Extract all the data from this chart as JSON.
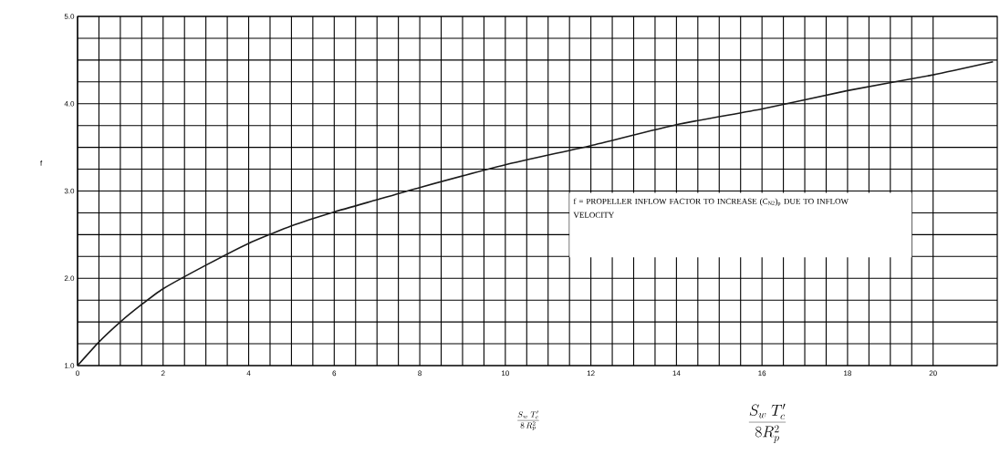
{
  "chart_data": {
    "type": "line",
    "x": [
      0,
      0.5,
      1,
      1.5,
      2,
      3,
      4,
      5,
      6,
      7,
      8,
      10,
      12,
      14,
      16,
      18,
      20,
      21.4
    ],
    "series": [
      {
        "color": "#1a1a1a",
        "values": [
          1.0,
          1.27,
          1.5,
          1.7,
          1.88,
          2.15,
          2.4,
          2.6,
          2.76,
          2.9,
          3.04,
          3.3,
          3.52,
          3.76,
          3.94,
          4.15,
          4.33,
          4.48
        ]
      }
    ],
    "xlim": [
      0,
      21.5
    ],
    "ylim": [
      1,
      5
    ],
    "xticks": [
      0,
      2,
      4,
      6,
      8,
      10,
      12,
      14,
      16,
      18,
      20
    ],
    "yticks": [
      {
        "value": 1,
        "label": "1.0"
      },
      {
        "value": 2,
        "label": "2.0"
      },
      {
        "value": 3,
        "label": "3.0"
      },
      {
        "value": 4,
        "label": "4.0"
      },
      {
        "value": 5,
        "label": "5.0"
      }
    ],
    "grid": true,
    "ylabel": "f",
    "xlabel": "\\frac{S_w\\;T'_c}{8\\,R_p^2}",
    "annotations": [
      "f = PROPELLER INFLOW FACTOR TO INCREASE (C$_{N2}$)$_{p}$ DUE TO INFLOW VELOCITY",
      "\\frac{S_w\\;T'_c}{8R_p^2}"
    ]
  }
}
